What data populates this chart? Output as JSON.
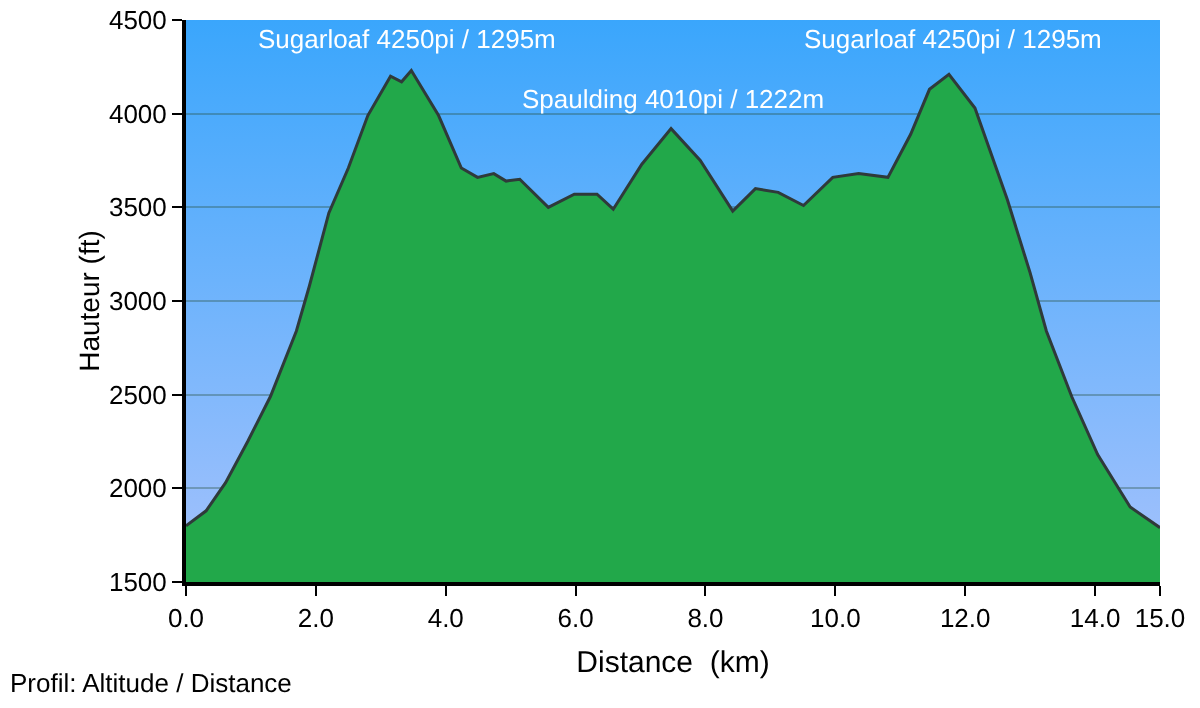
{
  "chart_data": {
    "type": "area",
    "xlabel": "Distance  (km)",
    "ylabel": "Hauteur (ft)",
    "x": [
      0,
      0.31,
      0.61,
      0.95,
      1.3,
      1.7,
      1.9,
      2.2,
      2.5,
      2.8,
      3.15,
      3.32,
      3.47,
      3.89,
      4.24,
      4.49,
      4.74,
      4.93,
      5.14,
      5.58,
      5.98,
      6.33,
      6.58,
      7.02,
      7.47,
      7.92,
      8.42,
      8.77,
      9.12,
      9.51,
      9.96,
      10.36,
      10.81,
      11.16,
      11.45,
      11.75,
      12.15,
      12.65,
      13.0,
      13.25,
      13.64,
      14.04,
      14.54,
      15.0
    ],
    "series": [
      {
        "color": "#22a84a",
        "values": [
          1800,
          1880,
          2030,
          2250,
          2490,
          2840,
          3080,
          3470,
          3710,
          3990,
          4200,
          4170,
          4230,
          3990,
          3710,
          3660,
          3680,
          3640,
          3650,
          3500,
          3570,
          3570,
          3490,
          3730,
          3920,
          3750,
          3480,
          3600,
          3580,
          3510,
          3660,
          3680,
          3660,
          3890,
          4130,
          4210,
          4030,
          3540,
          3150,
          2840,
          2490,
          2180,
          1900,
          1790
        ]
      }
    ],
    "xlim": [
      0,
      15
    ],
    "xticks": [
      {
        "value": 0,
        "label": "0.0"
      },
      {
        "value": 2,
        "label": "2.0"
      },
      {
        "value": 4,
        "label": "4.0"
      },
      {
        "value": 6,
        "label": "6.0"
      },
      {
        "value": 8,
        "label": "8.0"
      },
      {
        "value": 10,
        "label": "10.0"
      },
      {
        "value": 12,
        "label": "12.0"
      },
      {
        "value": 14,
        "label": "14.0"
      },
      {
        "value": 15,
        "label": "15.0"
      }
    ],
    "ylim": [
      1500,
      4500
    ],
    "yticks": [
      1500,
      2000,
      2500,
      3000,
      3500,
      4000,
      4500
    ],
    "grid": "y",
    "marker": "none",
    "line_style": "solid",
    "annotations": [
      {
        "text": "Sugarloaf 4250pi / 1295m",
        "x": 3.4,
        "y": 4250
      },
      "Spaulding 4010pi / 1222m",
      {
        "text": "Sugarloaf 4250pi / 1295m",
        "x": 11.8,
        "y": 4250
      },
      "Profil: Altitude / Distance"
    ]
  }
}
